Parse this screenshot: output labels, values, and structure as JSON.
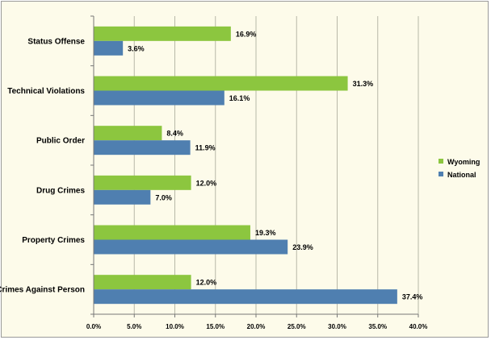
{
  "chart_data": {
    "type": "bar",
    "orientation": "horizontal",
    "categories": [
      "Status Offense",
      "Technical Violations",
      "Public Order",
      "Drug Crimes",
      "Property Crimes",
      "Crimes Against Person"
    ],
    "series": [
      {
        "name": "Wyoming",
        "values": [
          16.9,
          31.3,
          8.4,
          12.0,
          19.3,
          12.0
        ],
        "labels": [
          "16.9%",
          "31.3%",
          "8.4%",
          "12.0%",
          "19.3%",
          "12.0%"
        ],
        "color": "#8cc63f"
      },
      {
        "name": "National",
        "values": [
          3.6,
          16.1,
          11.9,
          7.0,
          23.9,
          37.4
        ],
        "labels": [
          "3.6%",
          "16.1%",
          "11.9%",
          "7.0%",
          "23.9%",
          "37.4%"
        ],
        "color": "#4f7fb0"
      }
    ],
    "xlim": [
      0,
      40
    ],
    "xticks": [
      0,
      5,
      10,
      15,
      20,
      25,
      30,
      35,
      40
    ],
    "xtick_labels": [
      "0.0%",
      "5.0%",
      "10.0%",
      "15.0%",
      "20.0%",
      "25.0%",
      "30.0%",
      "35.0%",
      "40.0%"
    ],
    "grid": true,
    "legend_position": "right"
  }
}
